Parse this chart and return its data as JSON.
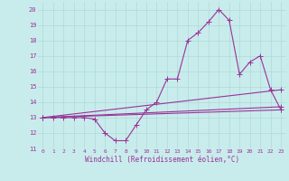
{
  "xlabel": "Windchill (Refroidissement éolien,°C)",
  "ylabel": "",
  "xlim": [
    -0.5,
    23.5
  ],
  "ylim": [
    11,
    20.5
  ],
  "yticks": [
    11,
    12,
    13,
    14,
    15,
    16,
    17,
    18,
    19,
    20
  ],
  "xticks": [
    0,
    1,
    2,
    3,
    4,
    5,
    6,
    7,
    8,
    9,
    10,
    11,
    12,
    13,
    14,
    15,
    16,
    17,
    18,
    19,
    20,
    21,
    22,
    23
  ],
  "bg_color": "#c8ecec",
  "grid_color": "#b0d8d8",
  "line_color": "#993399",
  "series": [
    {
      "x": [
        0,
        1,
        2,
        3,
        4,
        5,
        6,
        7,
        8,
        9,
        10,
        11,
        12,
        13,
        14,
        15,
        16,
        17,
        18,
        19,
        20,
        21,
        22,
        23
      ],
      "y": [
        13.0,
        13.0,
        13.0,
        13.0,
        13.0,
        12.9,
        12.0,
        11.5,
        11.5,
        12.5,
        13.5,
        14.0,
        15.5,
        15.5,
        18.0,
        18.5,
        19.2,
        20.0,
        19.3,
        15.8,
        16.6,
        17.0,
        14.8,
        13.5
      ]
    },
    {
      "x": [
        0,
        23
      ],
      "y": [
        13.0,
        13.5
      ]
    },
    {
      "x": [
        0,
        23
      ],
      "y": [
        13.0,
        14.8
      ]
    },
    {
      "x": [
        0,
        23
      ],
      "y": [
        13.0,
        13.7
      ]
    }
  ],
  "marker": "+",
  "markersize": 4,
  "linewidth": 0.8
}
